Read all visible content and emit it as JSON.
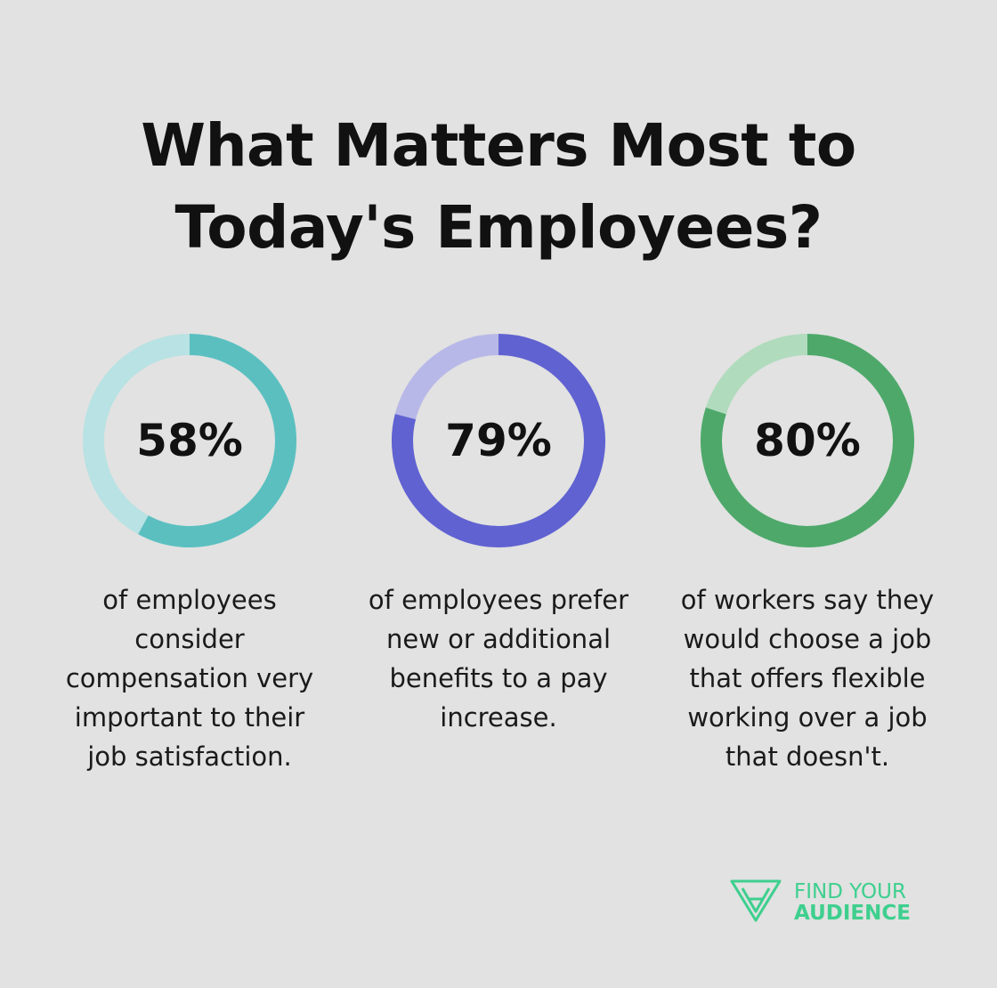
{
  "title_lines": [
    "What Matters Most to",
    "Today's Employees?"
  ],
  "chart_data": {
    "type": "donut",
    "items": [
      {
        "label": "58%",
        "value": 58,
        "description": "of employees consider compensation very important to their job satisfaction.",
        "color": "#5bbfc0",
        "track_color": "#b8e2e3"
      },
      {
        "label": "79%",
        "value": 79,
        "description": "of employees prefer new or additional benefits to a pay increase.",
        "color": "#6062d1",
        "track_color": "#b8b8e8"
      },
      {
        "label": "80%",
        "value": 80,
        "description": "of workers say they would choose a job that offers flexible working over a job that doesn't.",
        "color": "#4ea86a",
        "track_color": "#b1dbbd"
      }
    ]
  },
  "logo": {
    "line1": "FIND YOUR",
    "line2": "AUDIENCE",
    "color": "#3ecf8e"
  }
}
